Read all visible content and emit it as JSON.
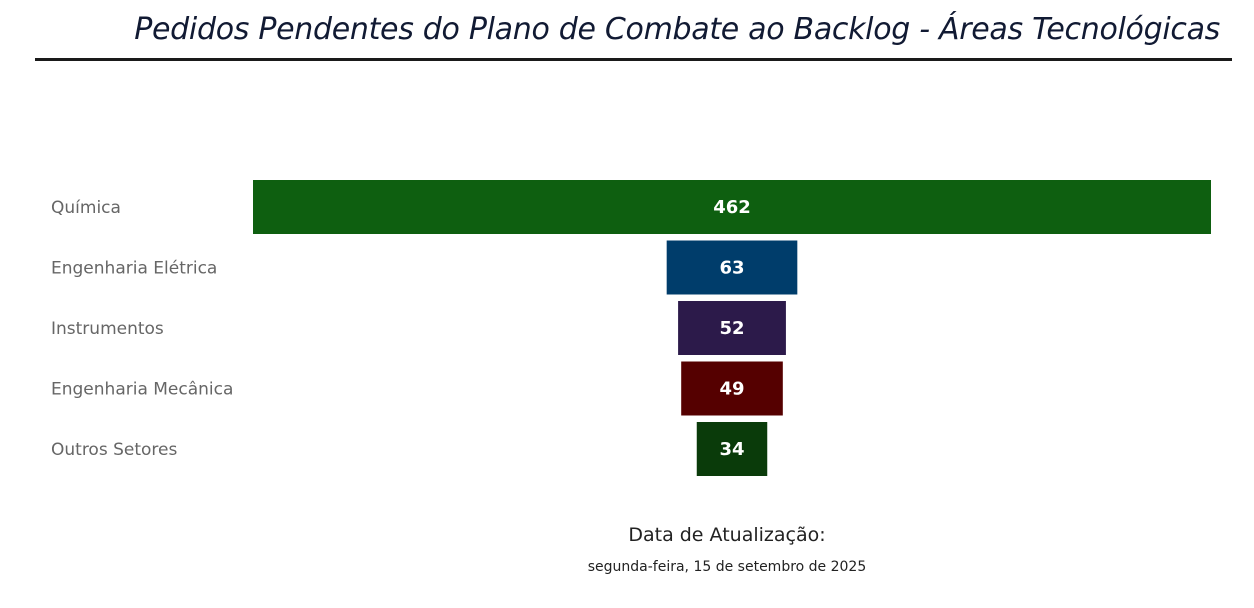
{
  "title": "Pedidos Pendentes do Plano de Combate ao Backlog - Áreas Tecnológicas",
  "footer": {
    "label": "Data de Atualização:",
    "date": "segunda-feira, 15 de setembro de 2025"
  },
  "chart_data": {
    "type": "bar",
    "orientation": "funnel",
    "title": "Pedidos Pendentes do Plano de Combate ao Backlog - Áreas Tecnológicas",
    "xlabel": "",
    "ylabel": "",
    "categories": [
      "Química",
      "Engenharia Elétrica",
      "Instrumentos",
      "Engenharia Mecânica",
      "Outros Setores"
    ],
    "values": [
      462,
      63,
      52,
      49,
      34
    ],
    "colors": [
      "#0e5f10",
      "#003d6b",
      "#2c1a4a",
      "#550000",
      "#0a3b0a"
    ],
    "data_labels": [
      "462",
      "63",
      "52",
      "49",
      "34"
    ],
    "label_color": "#ffffff",
    "category_label_color": "#666666",
    "grid": false
  }
}
